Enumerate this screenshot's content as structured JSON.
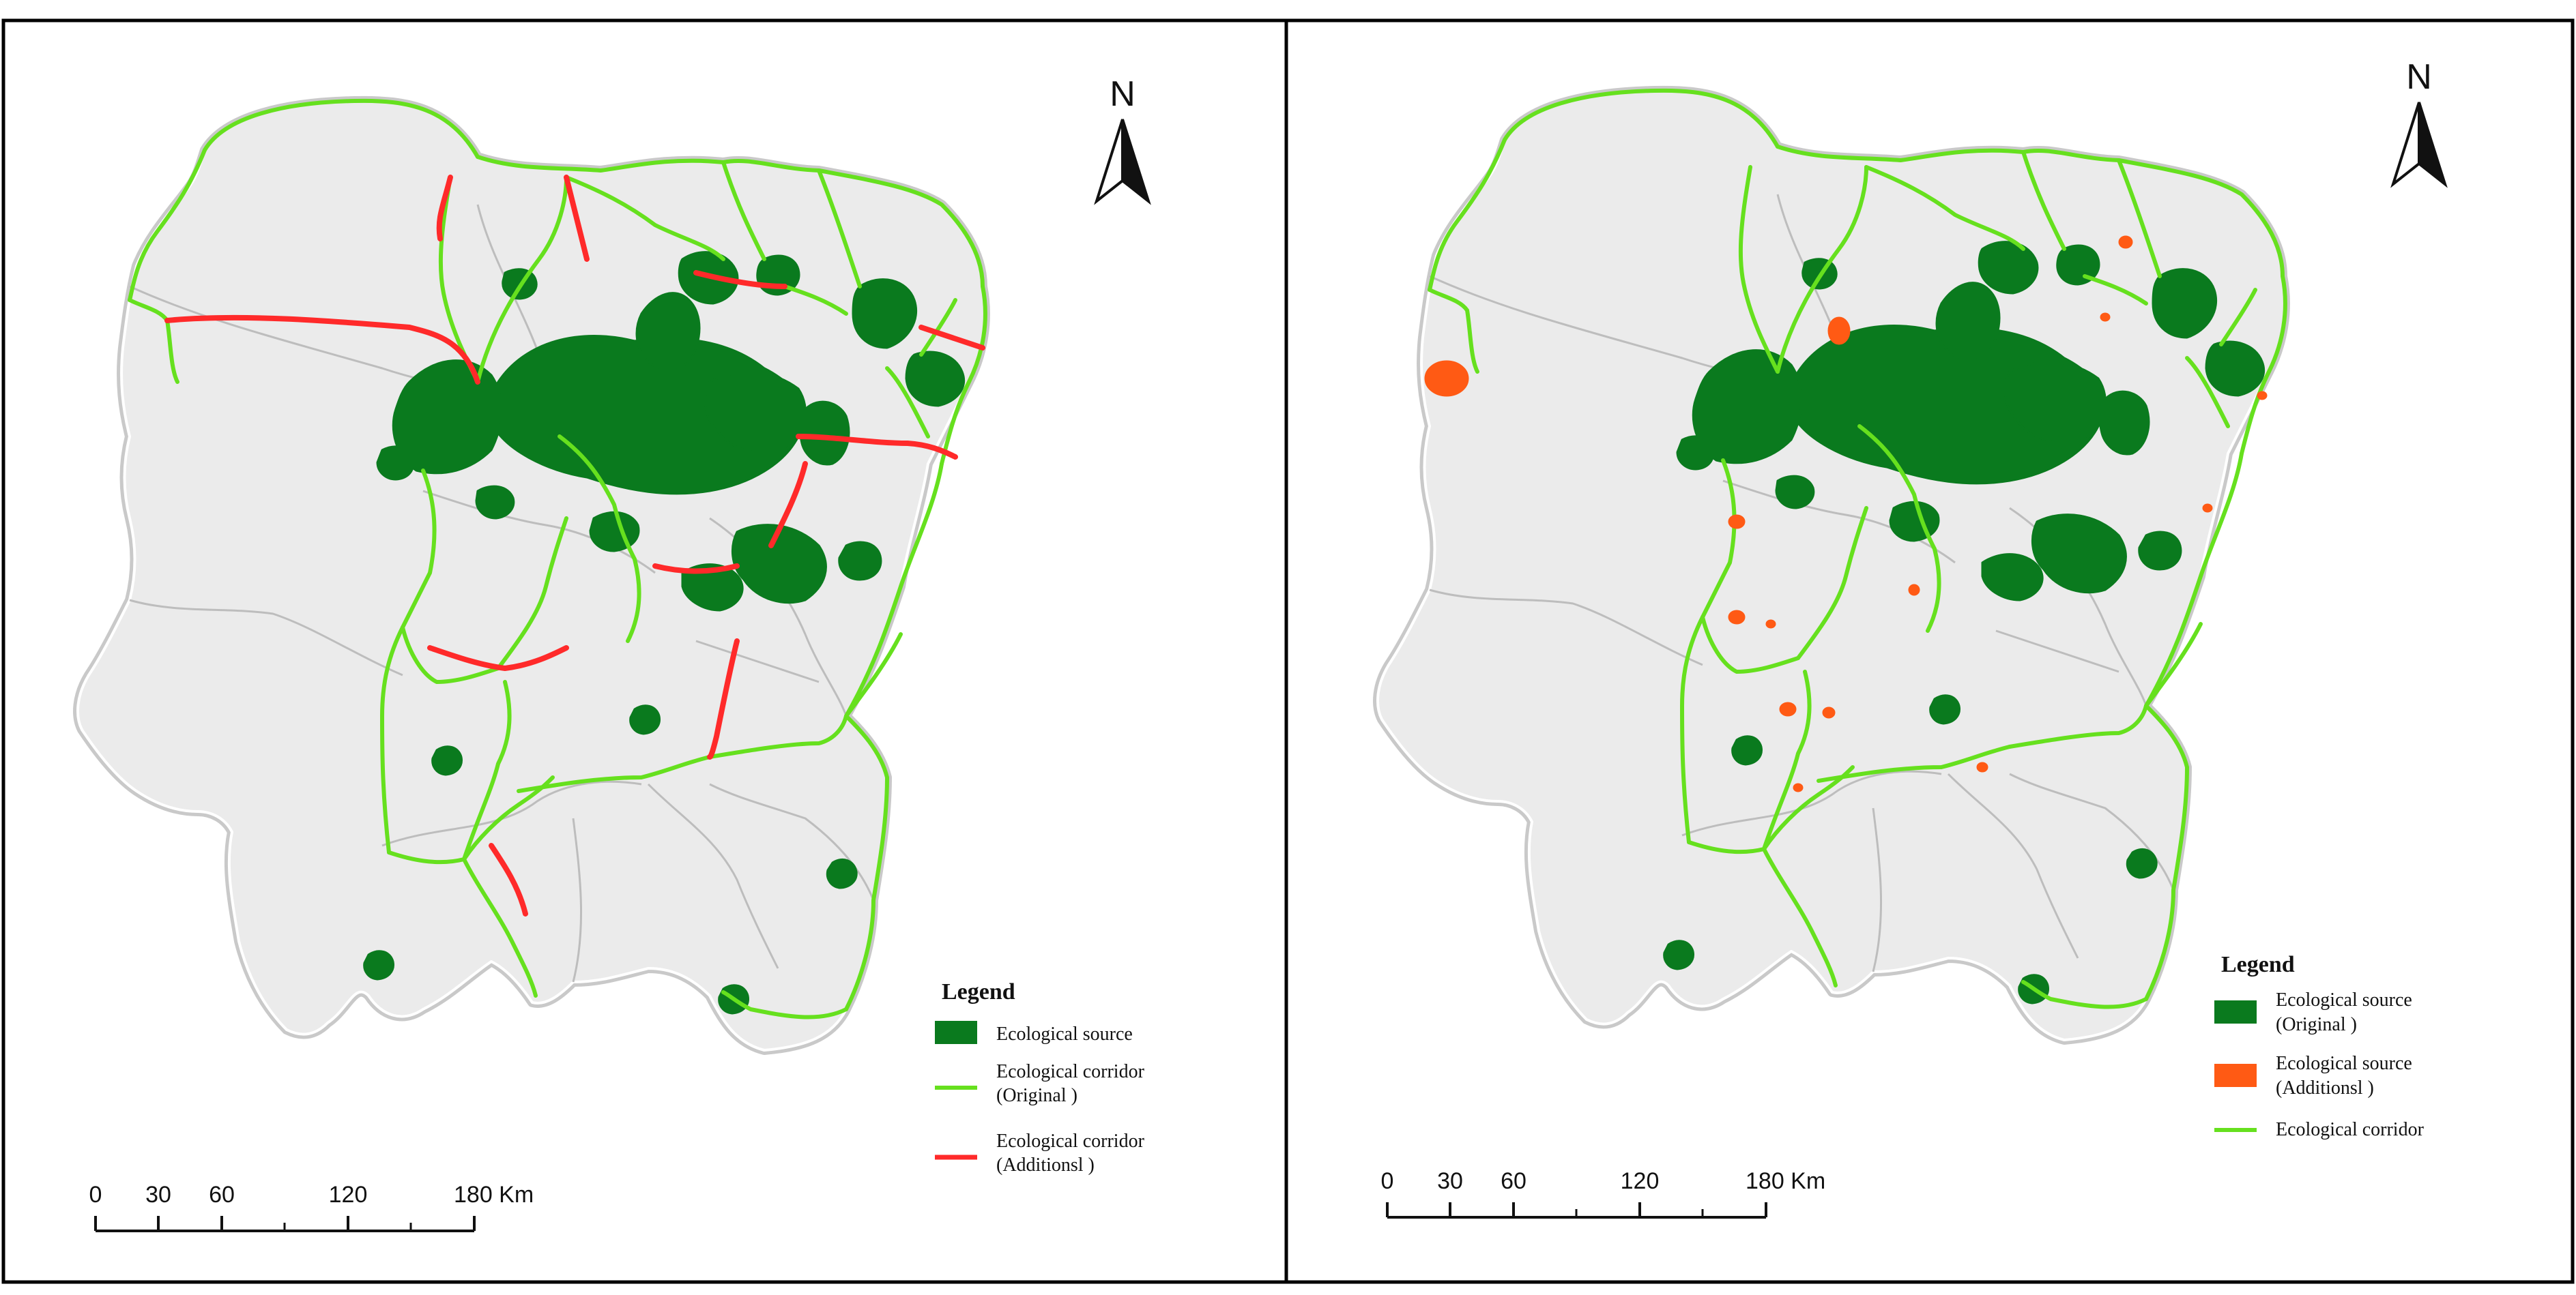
{
  "colors": {
    "source_original": "#0a7a1e",
    "source_additional": "#ff5a14",
    "corridor_original": "#66e01e",
    "corridor_additional": "#ff2a2a",
    "region_fill": "#e8e8e8"
  },
  "north_arrow": {
    "label": "N"
  },
  "panels": [
    {
      "id": "left",
      "legend": {
        "title": "Legend",
        "items": [
          {
            "type": "source-original",
            "lines": [
              "Ecological source"
            ]
          },
          {
            "type": "corridor-original",
            "lines": [
              "Ecological corridor",
              "(Original )"
            ]
          },
          {
            "type": "corridor-additional",
            "lines": [
              "Ecological corridor",
              "(Additionsl )"
            ]
          }
        ]
      },
      "scale_bar": {
        "ticks": [
          "0",
          "30",
          "60",
          "120",
          "180 Km"
        ]
      }
    },
    {
      "id": "right",
      "legend": {
        "title": "Legend",
        "items": [
          {
            "type": "source-original",
            "lines": [
              "Ecological source",
              "(Original )"
            ]
          },
          {
            "type": "source-additional",
            "lines": [
              "Ecological source",
              "(Additionsl )"
            ]
          },
          {
            "type": "corridor-original",
            "lines": [
              "Ecological corridor"
            ]
          }
        ]
      },
      "scale_bar": {
        "ticks": [
          "0",
          "30",
          "60",
          "120",
          "180 Km"
        ]
      }
    }
  ]
}
